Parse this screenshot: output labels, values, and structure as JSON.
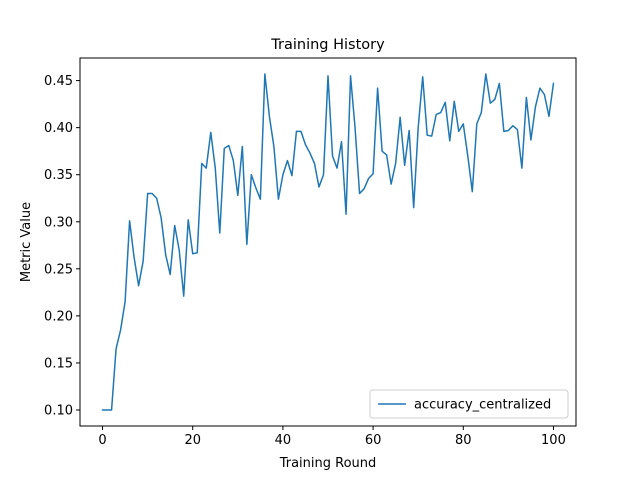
{
  "chart_data": {
    "type": "line",
    "title": "Training History",
    "xlabel": "Training Round",
    "ylabel": "Metric Value",
    "xlim": [
      -5,
      105
    ],
    "ylim": [
      0.083,
      0.474
    ],
    "xticks": [
      0,
      20,
      40,
      60,
      80,
      100
    ],
    "xtick_labels": [
      "0",
      "20",
      "40",
      "60",
      "80",
      "100"
    ],
    "yticks": [
      0.1,
      0.15,
      0.2,
      0.25,
      0.3,
      0.35,
      0.4,
      0.45
    ],
    "ytick_labels": [
      "0.10",
      "0.15",
      "0.20",
      "0.25",
      "0.30",
      "0.35",
      "0.40",
      "0.45"
    ],
    "grid": false,
    "legend_position": "lower-right",
    "series": [
      {
        "name": "accuracy_centralized",
        "color": "#1f77b4",
        "x": [
          0,
          1,
          2,
          3,
          4,
          5,
          6,
          7,
          8,
          9,
          10,
          11,
          12,
          13,
          14,
          15,
          16,
          17,
          18,
          19,
          20,
          21,
          22,
          23,
          24,
          25,
          26,
          27,
          28,
          29,
          30,
          31,
          32,
          33,
          34,
          35,
          36,
          37,
          38,
          39,
          40,
          41,
          42,
          43,
          44,
          45,
          46,
          47,
          48,
          49,
          50,
          51,
          52,
          53,
          54,
          55,
          56,
          57,
          58,
          59,
          60,
          61,
          62,
          63,
          64,
          65,
          66,
          67,
          68,
          69,
          70,
          71,
          72,
          73,
          74,
          75,
          76,
          77,
          78,
          79,
          80,
          81,
          82,
          83,
          84,
          85,
          86,
          87,
          88,
          89,
          90,
          91,
          92,
          93,
          94,
          95,
          96,
          97,
          98,
          99,
          100
        ],
        "y": [
          0.1,
          0.1,
          0.1,
          0.165,
          0.185,
          0.215,
          0.301,
          0.262,
          0.232,
          0.258,
          0.33,
          0.33,
          0.325,
          0.304,
          0.265,
          0.244,
          0.296,
          0.27,
          0.221,
          0.302,
          0.266,
          0.267,
          0.362,
          0.357,
          0.395,
          0.357,
          0.288,
          0.378,
          0.381,
          0.365,
          0.328,
          0.38,
          0.276,
          0.35,
          0.336,
          0.324,
          0.457,
          0.412,
          0.38,
          0.324,
          0.35,
          0.365,
          0.349,
          0.396,
          0.396,
          0.382,
          0.373,
          0.362,
          0.337,
          0.35,
          0.455,
          0.37,
          0.357,
          0.385,
          0.308,
          0.455,
          0.4,
          0.33,
          0.335,
          0.346,
          0.351,
          0.442,
          0.375,
          0.371,
          0.34,
          0.362,
          0.411,
          0.36,
          0.397,
          0.315,
          0.4,
          0.454,
          0.392,
          0.391,
          0.414,
          0.416,
          0.427,
          0.386,
          0.428,
          0.396,
          0.404,
          0.37,
          0.332,
          0.404,
          0.416,
          0.457,
          0.426,
          0.43,
          0.447,
          0.396,
          0.397,
          0.402,
          0.398,
          0.357,
          0.432,
          0.387,
          0.422,
          0.442,
          0.435,
          0.412,
          0.447
        ]
      }
    ]
  }
}
